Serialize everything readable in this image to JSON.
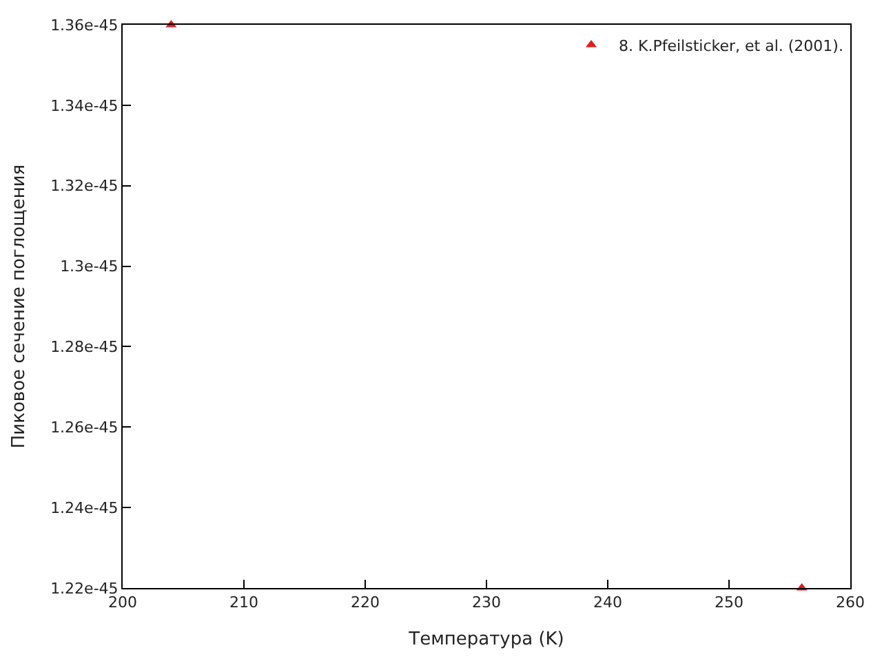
{
  "chart_data": {
    "type": "scatter",
    "xlabel": "Температура (K)",
    "ylabel": "Пиковое сечение поглощения",
    "x": [
      204,
      256
    ],
    "series": [
      {
        "name": "8. K.Pfeilsticker, et al. (2001).",
        "color": "#e41a1c",
        "values": [
          1.36e-45,
          1.22e-45
        ]
      }
    ],
    "xlim": [
      200,
      260
    ],
    "xticks": [
      200,
      210,
      220,
      230,
      240,
      250,
      260
    ],
    "ylim": [
      1.22e-45,
      1.36e-45
    ],
    "yticks": [
      1.22e-45,
      1.24e-45,
      1.26e-45,
      1.28e-45,
      1.3e-45,
      1.32e-45,
      1.34e-45,
      1.36e-45
    ],
    "marker": "triangle",
    "legend": "top right"
  }
}
